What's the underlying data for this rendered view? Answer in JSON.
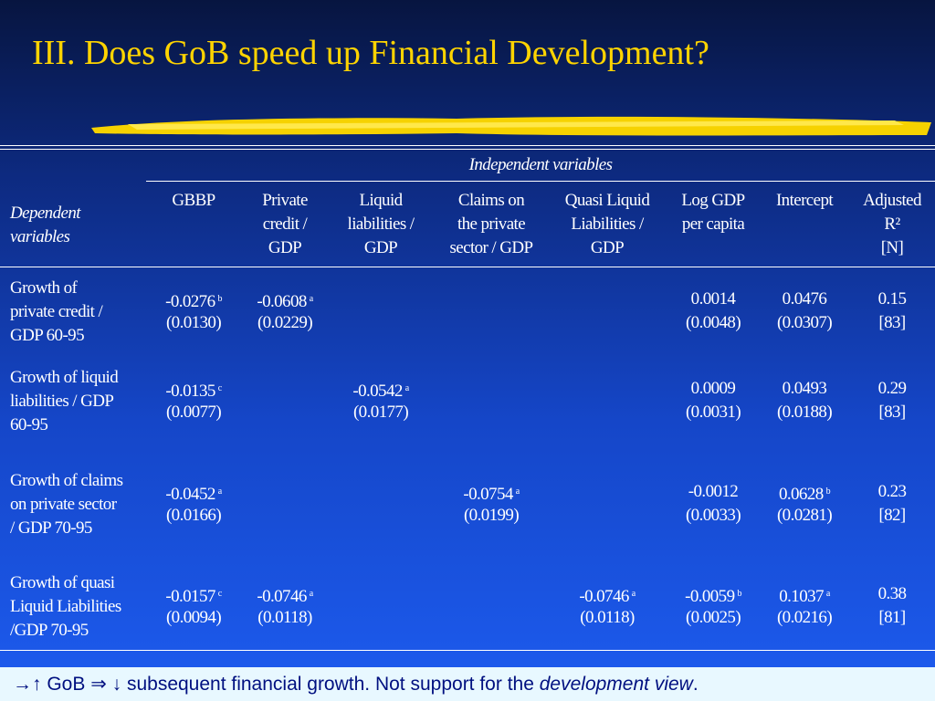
{
  "title": "III. Does GoB speed up Financial Development?",
  "table": {
    "group_header": "Independent variables",
    "dependent_header": [
      "Dependent",
      "variables"
    ],
    "columns": [
      [
        "GBBP"
      ],
      [
        "Private",
        "credit /",
        "GDP"
      ],
      [
        "Liquid",
        "liabilities /",
        "GDP"
      ],
      [
        "Claims on",
        "the private",
        "sector / GDP"
      ],
      [
        "Quasi Liquid",
        "Liabilities /",
        "GDP"
      ],
      [
        "Log GDP",
        "per capita"
      ],
      [
        "Intercept"
      ],
      [
        "Adjusted",
        "R²",
        "[N]"
      ]
    ],
    "rows": [
      {
        "label": [
          "Growth of",
          "private credit /",
          "GDP 60-95"
        ],
        "cells": [
          {
            "coef": "-0.0276",
            "sig": "b",
            "se": "(0.0130)"
          },
          {
            "coef": "-0.0608",
            "sig": "a",
            "se": "(0.0229)"
          },
          null,
          null,
          null,
          {
            "coef": "0.0014",
            "se": "(0.0048)"
          },
          {
            "coef": "0.0476",
            "se": "(0.0307)"
          },
          {
            "coef": "0.15",
            "se": "[83]"
          }
        ]
      },
      {
        "label": [
          "Growth of liquid",
          "liabilities / GDP",
          "60-95"
        ],
        "cells": [
          {
            "coef": "-0.0135",
            "sig": "c",
            "se": "(0.0077)"
          },
          null,
          {
            "coef": "-0.0542",
            "sig": "a",
            "se": "(0.0177)"
          },
          null,
          null,
          {
            "coef": "0.0009",
            "se": "(0.0031)"
          },
          {
            "coef": "0.0493",
            "se": "(0.0188)"
          },
          {
            "coef": "0.29",
            "se": "[83]"
          }
        ]
      },
      {
        "label": [
          "Growth of claims",
          "on private sector",
          "/ GDP 70-95"
        ],
        "cells": [
          {
            "coef": "-0.0452",
            "sig": "a",
            "se": "(0.0166)"
          },
          null,
          null,
          {
            "coef": "-0.0754",
            "sig": "a",
            "se": "(0.0199)"
          },
          null,
          {
            "coef": "-0.0012",
            "se": "(0.0033)"
          },
          {
            "coef": "0.0628",
            "sig": "b",
            "se": "(0.0281)"
          },
          {
            "coef": "0.23",
            "se": "[82]"
          }
        ]
      },
      {
        "label": [
          "Growth of quasi",
          "Liquid Liabilities",
          "/GDP 70-95"
        ],
        "cells": [
          {
            "coef": "-0.0157",
            "sig": "c",
            "se": "(0.0094)"
          },
          {
            "coef": "-0.0746",
            "sig": "a",
            "se": "(0.0118)"
          },
          null,
          null,
          {
            "coef": "-0.0746",
            "sig": "a",
            "se": "(0.0118)"
          },
          {
            "coef": "-0.0059",
            "sig": "b",
            "se": "(0.0025)"
          },
          {
            "coef": "0.1037",
            "sig": "a",
            "se": "(0.0216)"
          },
          {
            "coef": "0.38",
            "se": "[81]"
          }
        ]
      }
    ]
  },
  "footer": {
    "lead": "→↑ GoB ⇒ ↓ subsequent financial growth.  Not support for the ",
    "emphasis": "development view",
    "end": "."
  }
}
